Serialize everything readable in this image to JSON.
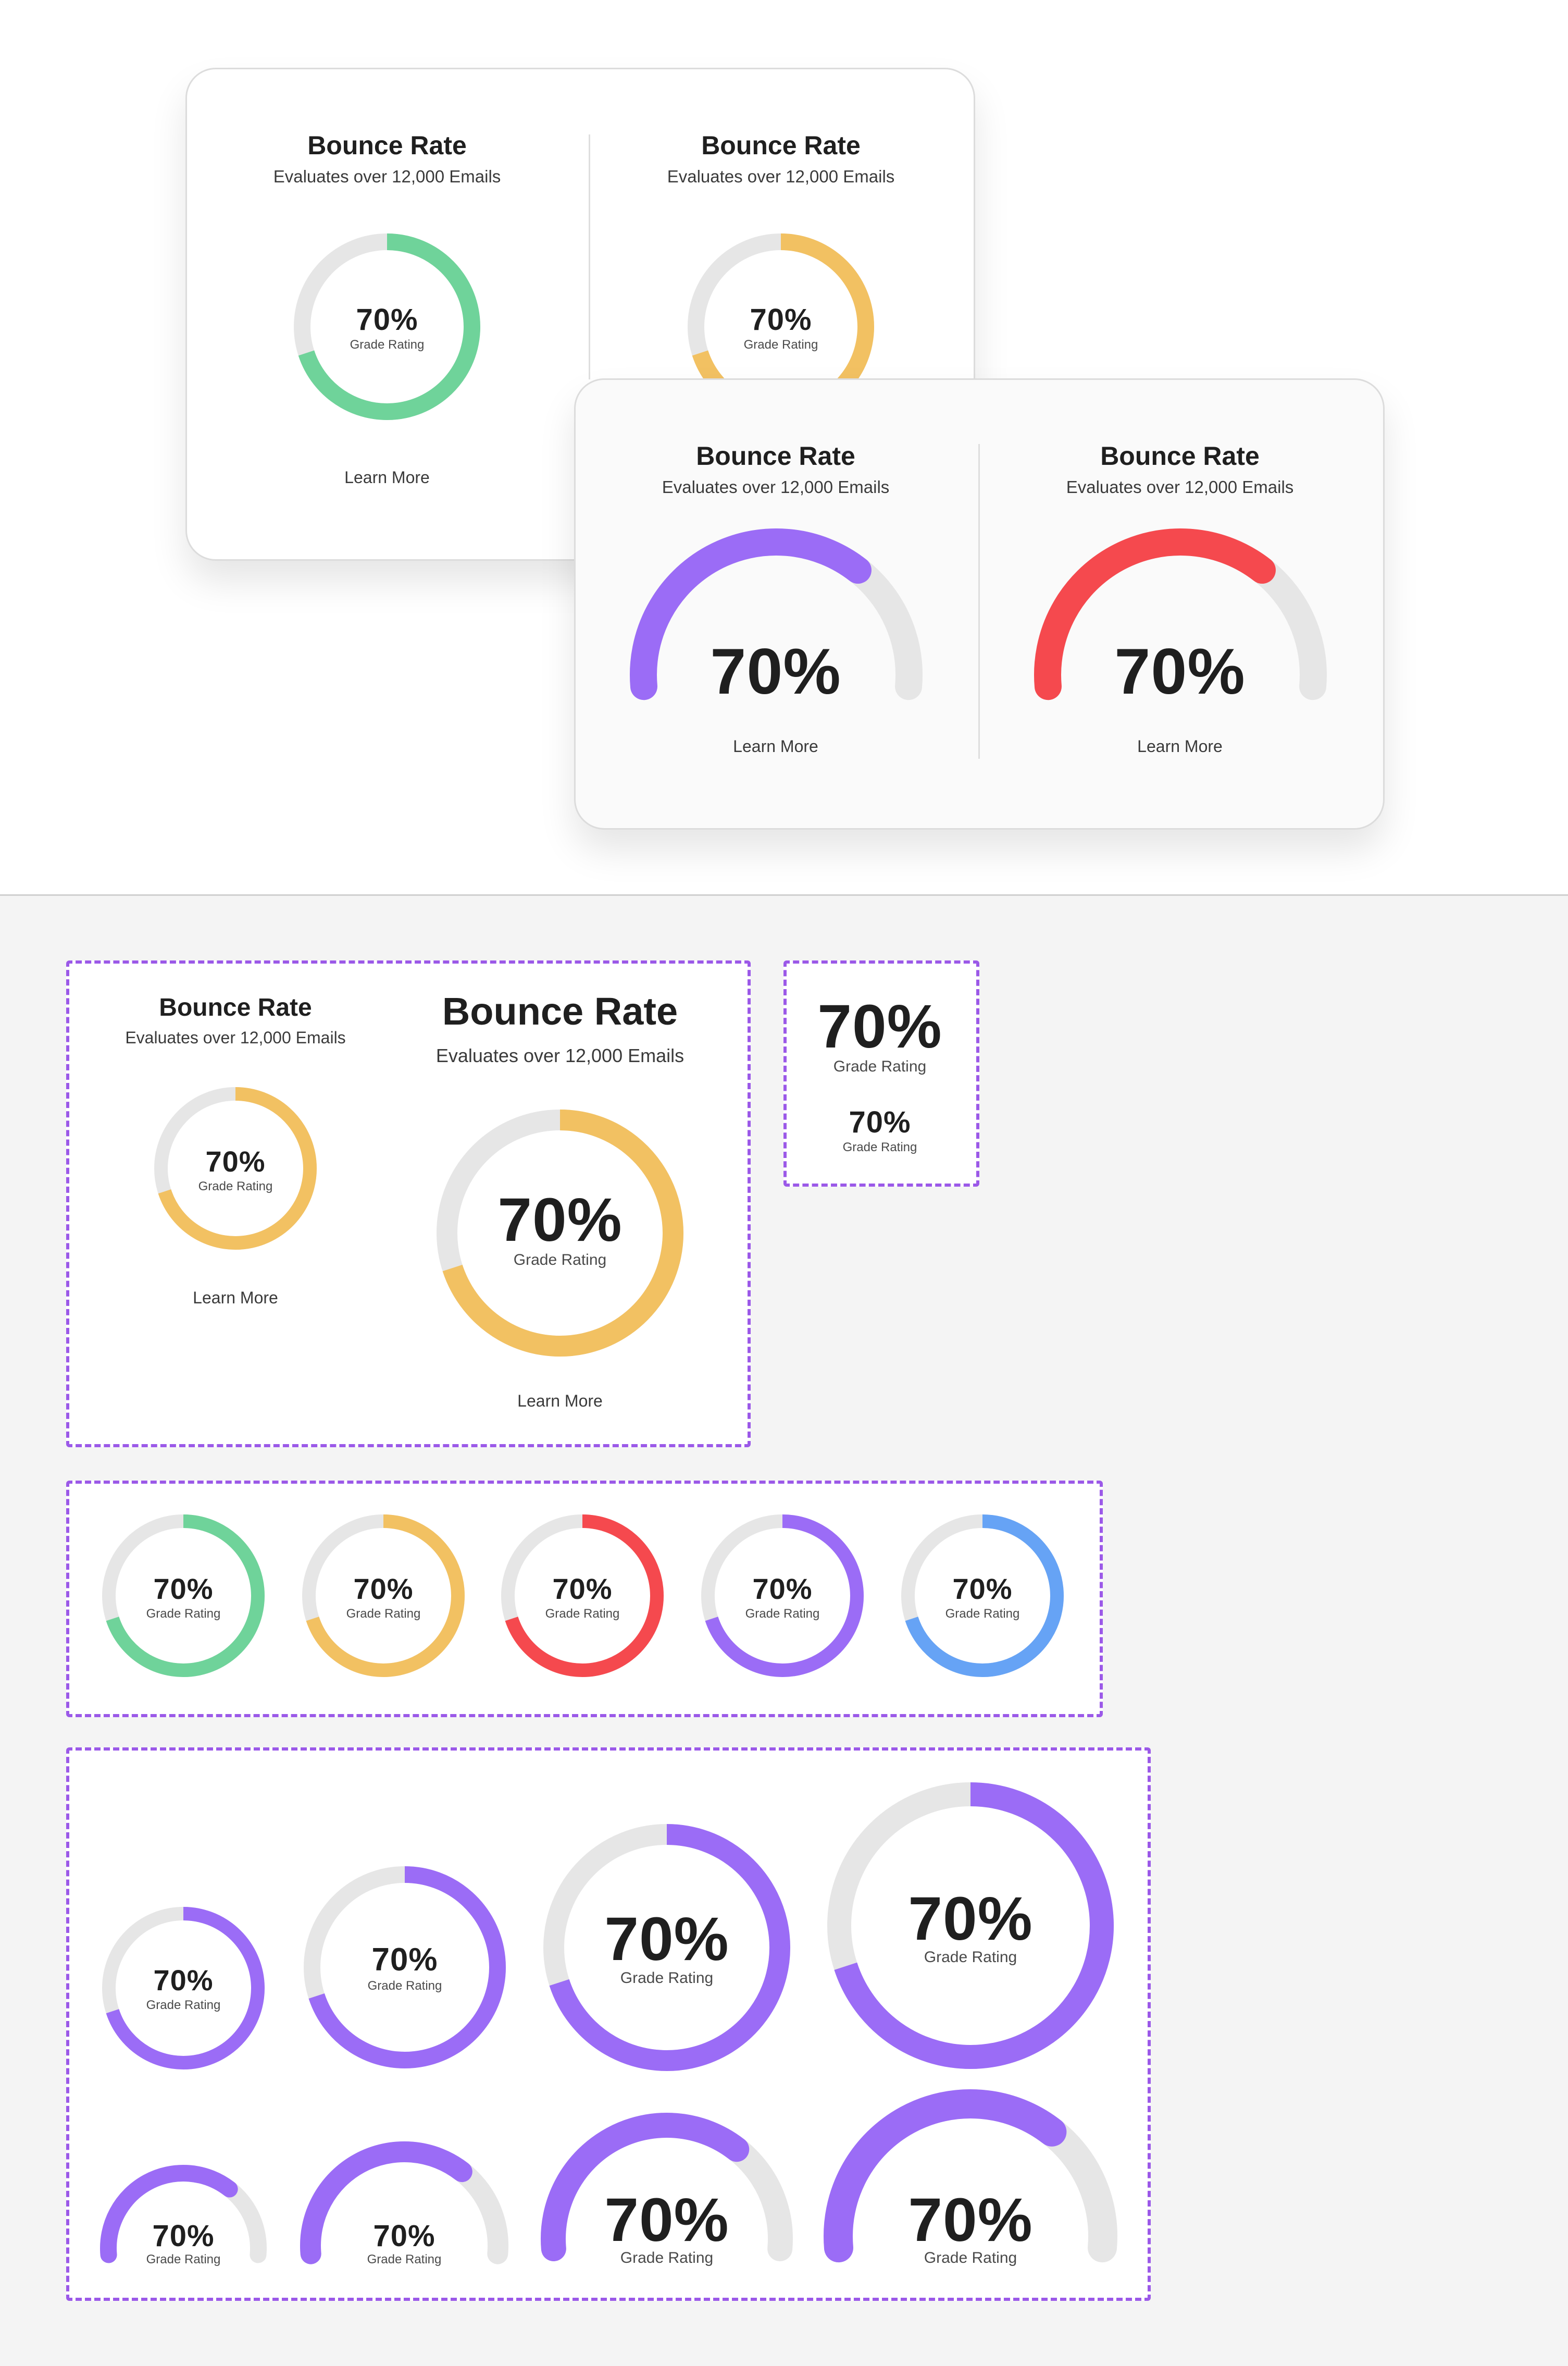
{
  "colors": {
    "green": "#6fd39a",
    "yellow": "#f2c162",
    "red": "#f5494e",
    "purple": "#9b6cf6",
    "blue": "#66a3f5",
    "track": "#e6e6e6",
    "dashed_border": "#9b59e8"
  },
  "card_primary": {
    "title": "Bounce Rate",
    "subtitle": "Evaluates over 12,000 Emails",
    "percent": "70%",
    "grade_label": "Grade Rating",
    "link": "Learn More",
    "value": 0.7
  },
  "card_primary_second": {
    "title": "Bounce Rate",
    "subtitle": "Evaluates over 12,000 Emails",
    "percent": "70%",
    "grade_label": "Grade Rating",
    "value": 0.7
  },
  "card_gauge": {
    "left": {
      "title": "Bounce Rate",
      "subtitle": "Evaluates over 12,000 Emails",
      "percent": "70%",
      "link": "Learn More",
      "value": 0.7
    },
    "right": {
      "title": "Bounce Rate",
      "subtitle": "Evaluates over 12,000 Emails",
      "percent": "70%",
      "link": "Learn More",
      "value": 0.7
    }
  },
  "component_sizes": {
    "small": {
      "title": "Bounce Rate",
      "subtitle": "Evaluates over 12,000 Emails",
      "percent": "70%",
      "grade_label": "Grade Rating",
      "link": "Learn More",
      "value": 0.7
    },
    "large": {
      "title": "Bounce Rate",
      "subtitle": "Evaluates over 12,000 Emails",
      "percent": "70%",
      "grade_label": "Grade Rating",
      "link": "Learn More",
      "value": 0.7
    }
  },
  "text_styles": {
    "large": {
      "percent": "70%",
      "grade_label": "Grade Rating"
    },
    "small": {
      "percent": "70%",
      "grade_label": "Grade Rating"
    }
  },
  "color_variants": [
    {
      "name": "green",
      "percent": "70%",
      "grade_label": "Grade Rating",
      "value": 0.7
    },
    {
      "name": "yellow",
      "percent": "70%",
      "grade_label": "Grade Rating",
      "value": 0.7
    },
    {
      "name": "red",
      "percent": "70%",
      "grade_label": "Grade Rating",
      "value": 0.7
    },
    {
      "name": "purple",
      "percent": "70%",
      "grade_label": "Grade Rating",
      "value": 0.7
    },
    {
      "name": "blue",
      "percent": "70%",
      "grade_label": "Grade Rating",
      "value": 0.7
    }
  ],
  "size_variants": {
    "rings": [
      {
        "percent": "70%",
        "grade_label": "Grade Rating",
        "value": 0.7
      },
      {
        "percent": "70%",
        "grade_label": "Grade Rating",
        "value": 0.7
      },
      {
        "percent": "70%",
        "grade_label": "Grade Rating",
        "value": 0.7
      },
      {
        "percent": "70%",
        "grade_label": "Grade Rating",
        "value": 0.7
      }
    ],
    "gauges": [
      {
        "percent": "70%",
        "grade_label": "Grade Rating",
        "value": 0.7
      },
      {
        "percent": "70%",
        "grade_label": "Grade Rating",
        "value": 0.7
      },
      {
        "percent": "70%",
        "grade_label": "Grade Rating",
        "value": 0.7
      },
      {
        "percent": "70%",
        "grade_label": "Grade Rating",
        "value": 0.7
      }
    ]
  }
}
